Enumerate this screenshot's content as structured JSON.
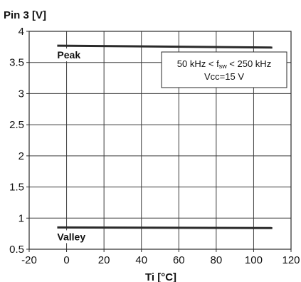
{
  "chart_data": {
    "type": "line",
    "ylabel": "Pin 3 [V]",
    "xlabel": "Ti [°C]",
    "xlim": [
      -20,
      120
    ],
    "ylim": [
      0.5,
      4
    ],
    "x_ticks": [
      -20,
      0,
      20,
      40,
      60,
      80,
      100,
      120
    ],
    "x_tick_labels": [
      "-20",
      "0",
      "20",
      "40",
      "60",
      "80",
      "100",
      "120"
    ],
    "y_ticks": [
      0.5,
      1,
      1.5,
      2,
      2.5,
      3,
      3.5,
      4
    ],
    "y_tick_labels": [
      "0.5",
      "1",
      "1.5",
      "2",
      "2.5",
      "3",
      "3.5",
      "4"
    ],
    "grid": true,
    "series": [
      {
        "name": "Peak",
        "x": [
          -5,
          110
        ],
        "y": [
          3.77,
          3.74
        ]
      },
      {
        "name": "Valley",
        "x": [
          -5,
          110
        ],
        "y": [
          0.85,
          0.84
        ]
      }
    ],
    "annotation": {
      "line1_a": "50 kHz < f",
      "line1_sub": "sw",
      "line1_b": " < 250 kHz",
      "line2": "Vcc=15 V"
    },
    "colors": {
      "series": "#2a2a2a",
      "grid": "#3c3c3c",
      "frame": "#2a2a2a"
    }
  }
}
